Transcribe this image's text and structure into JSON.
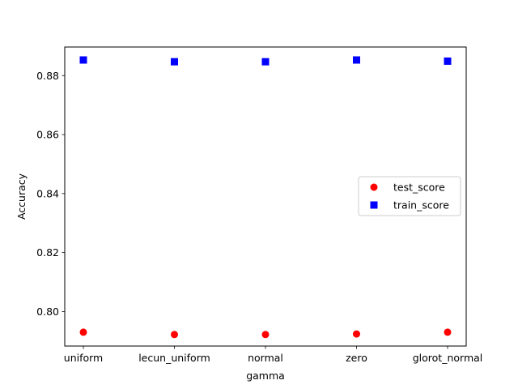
{
  "chart_data": {
    "type": "scatter",
    "title": "",
    "xlabel": "gamma",
    "ylabel": "Accuracy",
    "categories": [
      "uniform",
      "lecun_uniform",
      "normal",
      "zero",
      "glorot_normal"
    ],
    "ylim": [
      0.7883,
      0.8897
    ],
    "yticks": [
      0.8,
      0.82,
      0.84,
      0.86,
      0.88
    ],
    "ytick_labels": [
      "0.80",
      "0.82",
      "0.84",
      "0.86",
      "0.88"
    ],
    "grid": false,
    "legend_position": "center-right",
    "series": [
      {
        "name": "test_score",
        "marker": "circle",
        "color": "#ff0000",
        "values": [
          0.793,
          0.7922,
          0.7922,
          0.7924,
          0.793
        ]
      },
      {
        "name": "train_score",
        "marker": "square",
        "color": "#0000ff",
        "values": [
          0.8853,
          0.8847,
          0.8847,
          0.8853,
          0.8849
        ]
      }
    ]
  }
}
